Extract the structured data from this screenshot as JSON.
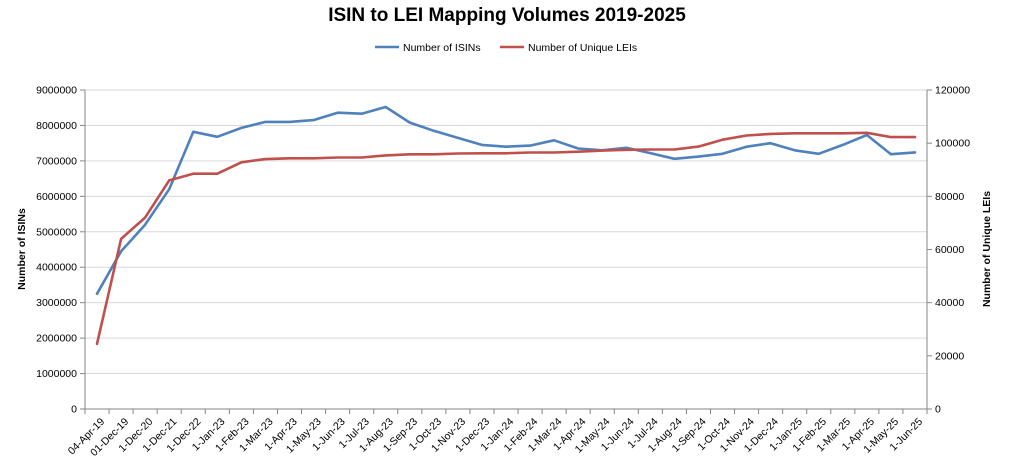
{
  "chart_data": {
    "type": "line",
    "title": "ISIN to LEI Mapping Volumes 2019-2025",
    "ylabel": "Number of ISINs",
    "y2label": "Number of Unique LEIs",
    "ylim": [
      0,
      9000000
    ],
    "y2lim": [
      0,
      120000
    ],
    "yticks": [
      "0",
      "1000000",
      "2000000",
      "3000000",
      "4000000",
      "5000000",
      "6000000",
      "7000000",
      "8000000",
      "9000000"
    ],
    "y2ticks": [
      "0",
      "20000",
      "40000",
      "60000",
      "80000",
      "100000",
      "120000"
    ],
    "grid": true,
    "legend_position": "top",
    "categories": [
      "04-Apr-19",
      "01-Dec-19",
      "1-Dec-20",
      "1-Dec-21",
      "1-Dec-22",
      "1-Jan-23",
      "1-Feb-23",
      "1-Mar-23",
      "1-Apr-23",
      "1-May-23",
      "1-Jun-23",
      "1-Jul-23",
      "1-Aug-23",
      "1-Sep-23",
      "1-Oct-23",
      "1-Nov-23",
      "1-Dec-23",
      "1-Jan-24",
      "1-Feb-24",
      "1-Mar-24",
      "1-Apr-24",
      "1-May-24",
      "1-Jun-24",
      "1-Jul-24",
      "1-Aug-24",
      "1-Sep-24",
      "1-Oct-24",
      "1-Nov-24",
      "1-Dec-24",
      "1-Jan-25",
      "1-Feb-25",
      "1-Mar-25",
      "1-Apr-25",
      "1-May-25",
      "1-Jun-25"
    ],
    "series": [
      {
        "name": "Number of ISINs",
        "axis": "left",
        "color": "#4f81bd",
        "values": [
          3250000,
          4450000,
          5200000,
          6200000,
          7820000,
          7680000,
          7930000,
          8100000,
          8100000,
          8150000,
          8360000,
          8330000,
          8520000,
          8080000,
          7850000,
          7650000,
          7450000,
          7400000,
          7430000,
          7580000,
          7350000,
          7300000,
          7370000,
          7220000,
          7060000,
          7120000,
          7200000,
          7400000,
          7500000,
          7300000,
          7200000,
          7450000,
          7730000,
          7190000,
          7240000
        ]
      },
      {
        "name": "Number of Unique LEIs",
        "axis": "right",
        "color": "#c0504d",
        "values": [
          24500,
          64000,
          72000,
          86000,
          88500,
          88500,
          92800,
          94000,
          94300,
          94300,
          94600,
          94600,
          95400,
          95800,
          95800,
          96100,
          96200,
          96200,
          96500,
          96500,
          96800,
          97200,
          97500,
          97600,
          97600,
          98700,
          101300,
          102900,
          103500,
          103700,
          103700,
          103700,
          103900,
          102300,
          102300
        ]
      }
    ]
  }
}
